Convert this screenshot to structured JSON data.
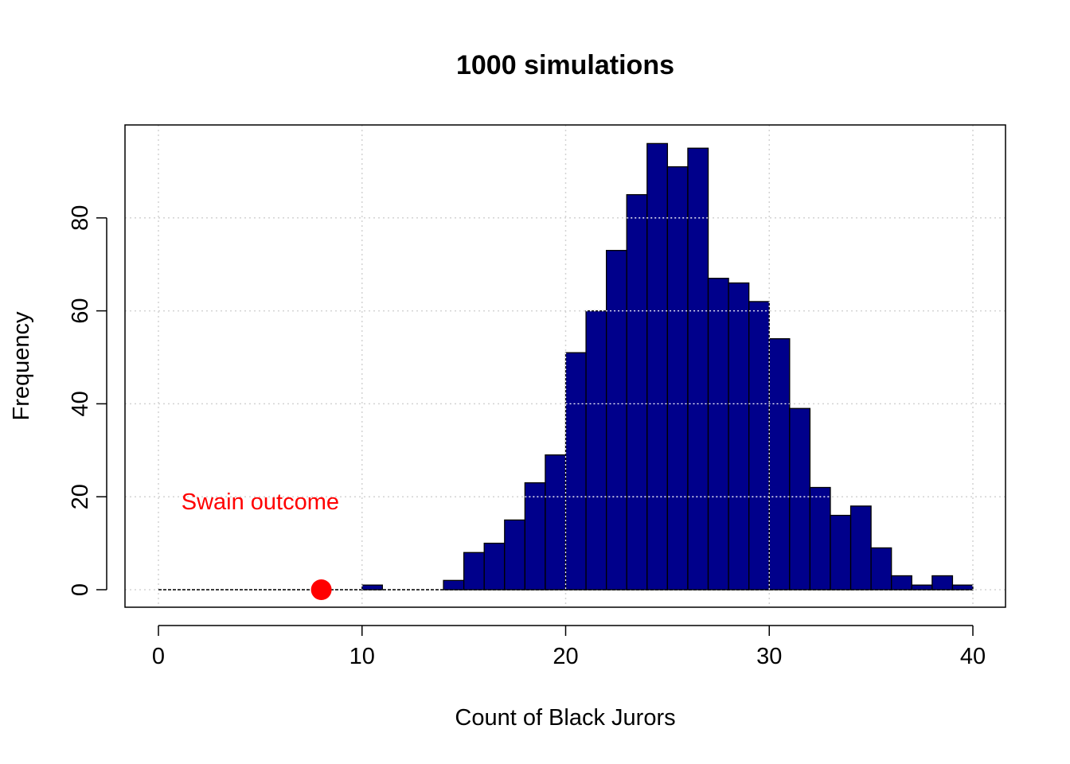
{
  "chart_data": {
    "type": "bar",
    "title": "1000 simulations",
    "xlabel": "Count of Black Jurors",
    "ylabel": "Frequency",
    "xlim": [
      0,
      40
    ],
    "ylim": [
      0,
      96
    ],
    "x_ticks": [
      "0",
      "10",
      "20",
      "30",
      "40"
    ],
    "y_ticks": [
      "0",
      "20",
      "40",
      "60",
      "80"
    ],
    "grid": true,
    "bin_width": 1,
    "bar_color": "#00008b",
    "bins": [
      {
        "x0": 10,
        "x1": 11,
        "count": 1
      },
      {
        "x0": 14,
        "x1": 15,
        "count": 2
      },
      {
        "x0": 15,
        "x1": 16,
        "count": 8
      },
      {
        "x0": 16,
        "x1": 17,
        "count": 10
      },
      {
        "x0": 17,
        "x1": 18,
        "count": 15
      },
      {
        "x0": 18,
        "x1": 19,
        "count": 23
      },
      {
        "x0": 19,
        "x1": 20,
        "count": 29
      },
      {
        "x0": 20,
        "x1": 21,
        "count": 51
      },
      {
        "x0": 21,
        "x1": 22,
        "count": 60
      },
      {
        "x0": 22,
        "x1": 23,
        "count": 73
      },
      {
        "x0": 23,
        "x1": 24,
        "count": 85
      },
      {
        "x0": 24,
        "x1": 25,
        "count": 96
      },
      {
        "x0": 25,
        "x1": 26,
        "count": 91
      },
      {
        "x0": 26,
        "x1": 27,
        "count": 95
      },
      {
        "x0": 27,
        "x1": 28,
        "count": 67
      },
      {
        "x0": 28,
        "x1": 29,
        "count": 66
      },
      {
        "x0": 29,
        "x1": 30,
        "count": 62
      },
      {
        "x0": 30,
        "x1": 31,
        "count": 54
      },
      {
        "x0": 31,
        "x1": 32,
        "count": 39
      },
      {
        "x0": 32,
        "x1": 33,
        "count": 22
      },
      {
        "x0": 33,
        "x1": 34,
        "count": 16
      },
      {
        "x0": 34,
        "x1": 35,
        "count": 18
      },
      {
        "x0": 35,
        "x1": 36,
        "count": 9
      },
      {
        "x0": 36,
        "x1": 37,
        "count": 3
      },
      {
        "x0": 37,
        "x1": 38,
        "count": 1
      },
      {
        "x0": 38,
        "x1": 39,
        "count": 3
      },
      {
        "x0": 39,
        "x1": 40,
        "count": 1
      }
    ],
    "marker": {
      "x": 8,
      "y": 0,
      "color": "#ff0000"
    },
    "annotation": {
      "text": "Swain outcome",
      "x": 5,
      "y": 19,
      "color": "#ff0000"
    }
  }
}
